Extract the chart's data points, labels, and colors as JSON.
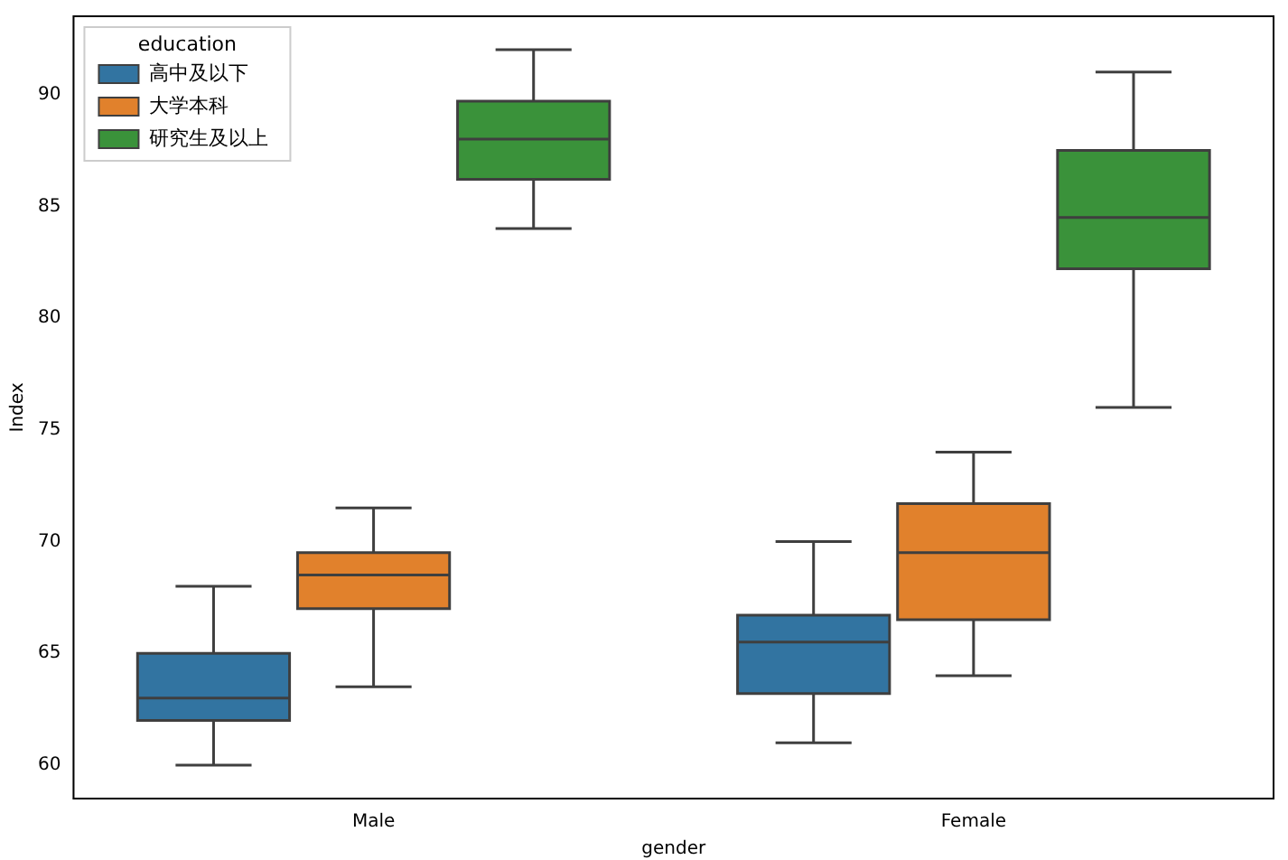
{
  "chart_data": {
    "type": "box",
    "xlabel": "gender",
    "ylabel": "Index",
    "legend_title": "education",
    "legend": "top left",
    "grid": false,
    "categories": [
      "Male",
      "Female"
    ],
    "ylim": [
      58.5,
      93.5
    ],
    "yticks": [
      60,
      65,
      70,
      75,
      80,
      85,
      90
    ],
    "series": [
      {
        "name": "高中及以下",
        "color": "#3274a1",
        "boxes": [
          {
            "low": 60,
            "q1": 62,
            "median": 63,
            "q3": 65,
            "high": 68
          },
          {
            "low": 61,
            "q1": 63.2,
            "median": 65.5,
            "q3": 66.7,
            "high": 70
          }
        ]
      },
      {
        "name": "大学本科",
        "color": "#e1812c",
        "boxes": [
          {
            "low": 63.5,
            "q1": 67,
            "median": 68.5,
            "q3": 69.5,
            "high": 71.5
          },
          {
            "low": 64,
            "q1": 66.5,
            "median": 69.5,
            "q3": 71.7,
            "high": 74
          }
        ]
      },
      {
        "name": "研究生及以上",
        "color": "#3a923a",
        "boxes": [
          {
            "low": 84,
            "q1": 86.2,
            "median": 88,
            "q3": 89.7,
            "high": 92
          },
          {
            "low": 76,
            "q1": 82.2,
            "median": 84.5,
            "q3": 87.5,
            "high": 91
          }
        ]
      }
    ]
  }
}
